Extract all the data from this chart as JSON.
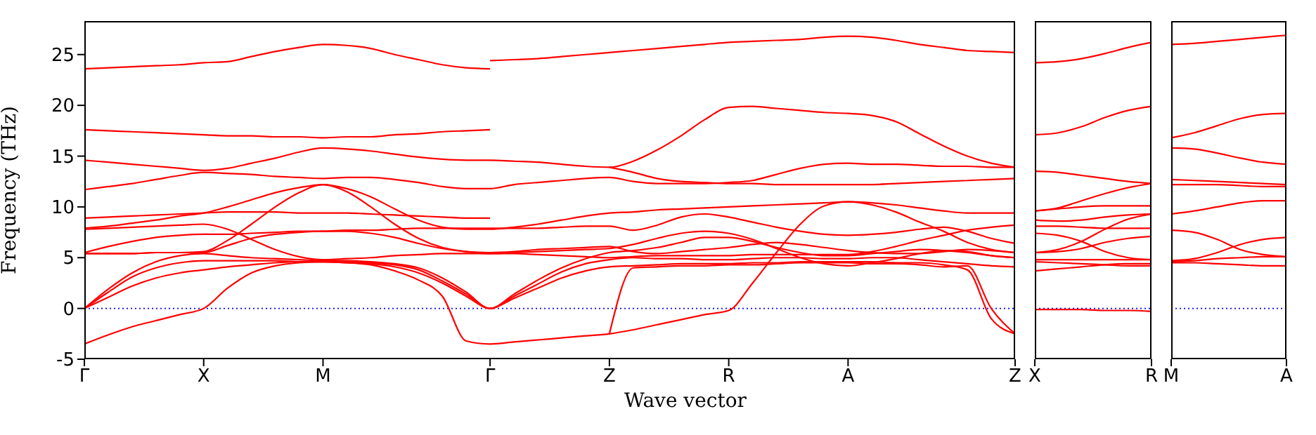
{
  "chart_data": [
    {
      "type": "line",
      "xlabel": "Wave vector",
      "ylabel": "Frequency (THz)",
      "categories": [
        "Γ",
        null,
        null,
        null,
        null,
        "X",
        null,
        null,
        null,
        null,
        "M",
        null,
        null,
        null,
        null,
        null,
        null,
        "Γ",
        null,
        null,
        null,
        null,
        "Z",
        null,
        null,
        null,
        null,
        "R",
        null,
        null,
        null,
        null,
        "A",
        null,
        null,
        null,
        null,
        null,
        null,
        "Z"
      ],
      "ylim": [
        -5,
        28.3
      ],
      "yticks": [
        -5,
        0,
        5,
        10,
        15,
        20,
        25
      ],
      "ref_lines": [
        {
          "axis": "y",
          "value": 0,
          "color": "#0000ff",
          "line_style": "dotted"
        }
      ],
      "series": [
        {
          "color": "#ff0000",
          "values": [
            23.6,
            23.7,
            23.8,
            23.9,
            24.0,
            24.2,
            24.3,
            24.8,
            25.3,
            25.7,
            26.0,
            25.9,
            25.6,
            25.0,
            24.5,
            24.0,
            23.7,
            23.6,
            null,
            null,
            null,
            null,
            null,
            null,
            null,
            null,
            null,
            null,
            null,
            null,
            null,
            null,
            null,
            null,
            null,
            null,
            null,
            null,
            null,
            null
          ]
        },
        {
          "color": "#ff0000",
          "values": [
            null,
            null,
            null,
            null,
            null,
            null,
            null,
            null,
            null,
            null,
            null,
            null,
            null,
            null,
            null,
            null,
            null,
            24.4,
            24.5,
            24.6,
            24.8,
            25.0,
            25.2,
            25.4,
            25.6,
            25.8,
            26.0,
            26.2,
            26.3,
            26.4,
            26.5,
            26.7,
            26.8,
            26.7,
            26.4,
            26.0,
            25.7,
            25.4,
            25.3,
            25.2
          ]
        },
        {
          "color": "#ff0000",
          "values": [
            17.6,
            17.5,
            17.4,
            17.3,
            17.2,
            17.1,
            17.0,
            17.0,
            16.9,
            16.9,
            16.8,
            16.9,
            16.9,
            17.1,
            17.2,
            17.4,
            17.5,
            17.6,
            null,
            null,
            null,
            null,
            null,
            null,
            null,
            null,
            null,
            null,
            null,
            null,
            null,
            null,
            null,
            null,
            null,
            null,
            null,
            null,
            null,
            null
          ]
        },
        {
          "color": "#ff0000",
          "values": [
            14.6,
            14.4,
            14.2,
            14.0,
            13.8,
            13.6,
            13.8,
            14.3,
            14.8,
            15.4,
            15.8,
            15.7,
            15.5,
            15.2,
            14.9,
            14.7,
            14.6,
            14.6,
            14.5,
            14.4,
            14.2,
            14.0,
            13.9,
            14.5,
            15.6,
            17.0,
            18.6,
            19.8,
            19.9,
            19.7,
            19.5,
            19.3,
            19.2,
            19.0,
            18.4,
            17.2,
            16.0,
            15.0,
            14.3,
            13.9
          ]
        },
        {
          "color": "#ff0000",
          "values": [
            11.7,
            12.0,
            12.3,
            12.7,
            13.1,
            13.4,
            13.3,
            13.2,
            13.0,
            12.9,
            12.8,
            12.9,
            12.9,
            12.7,
            12.4,
            12.0,
            11.8,
            11.8,
            12.2,
            12.4,
            12.6,
            12.8,
            12.9,
            12.5,
            12.3,
            12.3,
            12.3,
            12.4,
            12.6,
            13.2,
            13.8,
            14.2,
            14.3,
            14.2,
            14.2,
            14.1,
            14.0,
            14.0,
            13.9,
            13.9
          ]
        },
        {
          "color": "#ff0000",
          "values": [
            null,
            null,
            null,
            null,
            null,
            null,
            null,
            null,
            null,
            null,
            null,
            null,
            null,
            null,
            null,
            null,
            null,
            null,
            null,
            null,
            null,
            null,
            13.9,
            13.4,
            12.8,
            12.5,
            12.4,
            12.3,
            12.3,
            12.2,
            12.2,
            12.2,
            12.2,
            12.2,
            12.3,
            12.4,
            12.5,
            12.6,
            12.7,
            12.8
          ]
        },
        {
          "color": "#ff0000",
          "values": [
            8.9,
            9.0,
            9.1,
            9.2,
            9.3,
            9.4,
            9.5,
            9.5,
            9.5,
            9.4,
            9.4,
            9.4,
            9.3,
            9.2,
            9.1,
            9.0,
            8.9,
            8.9,
            null,
            null,
            null,
            null,
            null,
            null,
            null,
            null,
            null,
            null,
            null,
            null,
            null,
            null,
            null,
            null,
            null,
            null,
            null,
            null,
            null,
            null
          ]
        },
        {
          "color": "#ff0000",
          "values": [
            7.9,
            8.1,
            8.4,
            8.7,
            9.1,
            9.4,
            10.0,
            10.7,
            11.4,
            11.9,
            12.2,
            11.8,
            11.0,
            9.8,
            8.7,
            8.0,
            7.8,
            7.8,
            8.0,
            8.3,
            8.7,
            9.1,
            9.4,
            9.5,
            9.7,
            9.8,
            9.9,
            10.0,
            10.1,
            10.2,
            10.3,
            10.4,
            10.5,
            10.4,
            10.2,
            9.9,
            9.6,
            9.4,
            9.4,
            9.4
          ]
        },
        {
          "color": "#ff0000",
          "values": [
            7.8,
            7.9,
            8.0,
            8.1,
            8.2,
            8.3,
            7.8,
            6.8,
            5.8,
            5.1,
            4.8,
            4.9,
            5.0,
            5.2,
            5.3,
            5.4,
            5.4,
            5.4,
            5.4,
            5.3,
            5.2,
            5.1,
            5.0,
            5.1,
            5.2,
            5.2,
            5.2,
            5.2,
            5.3,
            5.3,
            5.3,
            5.3,
            5.3,
            5.6,
            6.1,
            6.7,
            7.2,
            7.7,
            8.0,
            8.2
          ]
        },
        {
          "color": "#ff0000",
          "values": [
            5.5,
            6.1,
            6.6,
            7.0,
            7.2,
            7.3,
            7.3,
            7.4,
            7.5,
            7.6,
            7.6,
            7.7,
            7.7,
            7.8,
            7.9,
            7.9,
            7.9,
            7.9,
            7.9,
            7.9,
            8.0,
            8.1,
            8.1,
            7.7,
            8.2,
            9.0,
            9.3,
            9.0,
            8.5,
            8.0,
            7.6,
            7.3,
            7.2,
            7.3,
            7.5,
            7.8,
            8.0,
            7.6,
            6.9,
            6.4
          ]
        },
        {
          "color": "#ff0000",
          "values": [
            5.4,
            5.4,
            5.4,
            5.5,
            5.5,
            5.6,
            6.7,
            8.3,
            10.0,
            11.4,
            12.2,
            11.5,
            10.0,
            8.3,
            6.9,
            6.0,
            5.6,
            5.4,
            5.5,
            5.6,
            5.7,
            5.8,
            5.9,
            6.3,
            6.9,
            7.4,
            7.6,
            7.4,
            6.8,
            5.9,
            5.0,
            4.4,
            4.2,
            4.5,
            4.9,
            5.4,
            5.7,
            5.6,
            5.2,
            5.0
          ]
        },
        {
          "color": "#ff0000",
          "values": [
            5.4,
            5.4,
            5.4,
            5.5,
            5.5,
            5.5,
            6.2,
            6.9,
            7.3,
            7.5,
            7.6,
            7.6,
            7.4,
            7.0,
            6.4,
            5.9,
            5.6,
            5.5,
            5.6,
            5.8,
            5.9,
            6.0,
            6.1,
            5.6,
            5.4,
            5.6,
            5.8,
            6.0,
            6.3,
            6.5,
            6.3,
            6.0,
            5.7,
            5.5,
            5.4,
            5.4,
            5.6,
            5.8,
            5.7,
            5.5
          ]
        },
        {
          "color": "#ff0000",
          "values": [
            0,
            1.9,
            3.5,
            4.6,
            5.2,
            5.4,
            5.2,
            5.0,
            4.9,
            4.8,
            4.7,
            4.7,
            4.6,
            4.4,
            4.0,
            3.0,
            1.6,
            0,
            1.4,
            2.8,
            4.0,
            4.9,
            5.5,
            5.7,
            6.0,
            6.5,
            7.0,
            7.0,
            6.6,
            6.0,
            5.5,
            5.2,
            5.2,
            5.4,
            5.6,
            5.8,
            5.7,
            5.5,
            5.2,
            5.0
          ]
        },
        {
          "color": "#ff0000",
          "values": [
            0,
            1.6,
            3.1,
            4.0,
            4.5,
            4.7,
            4.7,
            4.7,
            4.7,
            4.6,
            4.6,
            4.6,
            4.5,
            4.3,
            3.8,
            2.7,
            1.4,
            0,
            1.2,
            2.4,
            3.6,
            4.4,
            4.8,
            5.0,
            4.9,
            4.9,
            4.8,
            4.8,
            4.9,
            5.0,
            5.0,
            4.9,
            4.9,
            5.0,
            5.0,
            4.8,
            4.6,
            4.4,
            4.2,
            4.1
          ]
        },
        {
          "color": "#ff0000",
          "values": [
            0,
            1.1,
            2.2,
            3.0,
            3.5,
            3.8,
            4.1,
            4.3,
            4.5,
            4.6,
            4.6,
            4.5,
            4.4,
            4.1,
            3.5,
            2.5,
            1.2,
            0,
            1.0,
            2.0,
            3.0,
            3.7,
            4.1,
            4.2,
            4.3,
            4.4,
            4.4,
            4.4,
            4.5,
            4.5,
            4.6,
            4.6,
            4.6,
            4.6,
            4.5,
            4.5,
            4.3,
            3.8,
            -1.0,
            -2.5
          ]
        },
        {
          "color": "#ff0000",
          "values": [
            -3.5,
            -2.6,
            -1.8,
            -1.2,
            -0.6,
            0,
            2.0,
            3.5,
            4.2,
            4.5,
            4.6,
            4.5,
            4.3,
            3.7,
            2.8,
            1.2,
            -3.2,
            -3.5,
            -3.3,
            -3.1,
            -2.9,
            -2.7,
            -2.5,
            -2.1,
            -1.6,
            -1.1,
            -0.6,
            -0.2,
            2.5,
            5.5,
            8.3,
            10.1,
            10.5,
            10.2,
            9.5,
            8.5,
            7.6,
            6.5,
            5.8,
            5.5
          ]
        },
        {
          "color": "#ff0000",
          "values": [
            null,
            null,
            null,
            null,
            null,
            null,
            null,
            null,
            null,
            null,
            null,
            null,
            null,
            null,
            null,
            null,
            null,
            null,
            null,
            null,
            null,
            null,
            -2.5,
            4.0,
            4.1,
            4.2,
            4.2,
            4.3,
            4.3,
            4.4,
            4.5,
            4.5,
            4.5,
            4.4,
            4.4,
            4.3,
            4.1,
            4.2,
            0.0,
            -2.5
          ]
        }
      ]
    },
    {
      "type": "line",
      "categories": [
        "X",
        null,
        null,
        null,
        null,
        "R"
      ],
      "ylim": [
        -5,
        28.3
      ],
      "yticks": [
        -5,
        0,
        5,
        10,
        15,
        20,
        25
      ],
      "tick_labels": "x",
      "ref_lines": [
        {
          "axis": "y",
          "value": 0,
          "color": "#0000ff",
          "line_style": "dotted"
        }
      ],
      "series": [
        {
          "color": "#ff0000",
          "values": [
            24.2,
            24.3,
            24.6,
            25.1,
            25.7,
            26.2
          ]
        },
        {
          "color": "#ff0000",
          "values": [
            17.1,
            17.3,
            17.9,
            18.8,
            19.5,
            19.9
          ]
        },
        {
          "color": "#ff0000",
          "values": [
            13.5,
            13.4,
            13.1,
            12.8,
            12.5,
            12.3
          ]
        },
        {
          "color": "#ff0000",
          "values": [
            9.6,
            9.9,
            10.6,
            11.3,
            11.9,
            12.3
          ]
        },
        {
          "color": "#ff0000",
          "values": [
            9.6,
            9.8,
            10.0,
            10.1,
            10.1,
            10.1
          ]
        },
        {
          "color": "#ff0000",
          "values": [
            8.7,
            8.6,
            8.7,
            9.0,
            9.2,
            9.3
          ]
        },
        {
          "color": "#ff0000",
          "values": [
            8.1,
            8.1,
            8.0,
            7.9,
            7.9,
            7.9
          ]
        },
        {
          "color": "#ff0000",
          "values": [
            7.4,
            7.2,
            6.6,
            5.6,
            5.0,
            4.8
          ]
        },
        {
          "color": "#ff0000",
          "values": [
            5.5,
            5.8,
            6.6,
            7.8,
            8.8,
            9.3
          ]
        },
        {
          "color": "#ff0000",
          "values": [
            5.5,
            5.6,
            5.9,
            6.5,
            6.9,
            7.1
          ]
        },
        {
          "color": "#ff0000",
          "values": [
            4.8,
            4.8,
            4.8,
            4.8,
            4.8,
            4.8
          ]
        },
        {
          "color": "#ff0000",
          "values": [
            4.6,
            4.5,
            4.4,
            4.3,
            4.2,
            4.2
          ]
        },
        {
          "color": "#ff0000",
          "values": [
            3.7,
            3.9,
            4.1,
            4.3,
            4.4,
            4.4
          ]
        },
        {
          "color": "#ff0000",
          "values": [
            -0.1,
            -0.1,
            -0.1,
            -0.2,
            -0.2,
            -0.3
          ]
        }
      ]
    },
    {
      "type": "line",
      "categories": [
        "M",
        null,
        null,
        null,
        null,
        "A"
      ],
      "ylim": [
        -5,
        28.3
      ],
      "yticks": [
        -5,
        0,
        5,
        10,
        15,
        20,
        25
      ],
      "tick_labels": "x",
      "ref_lines": [
        {
          "axis": "y",
          "value": 0,
          "color": "#0000ff",
          "line_style": "dotted"
        }
      ],
      "series": [
        {
          "color": "#ff0000",
          "values": [
            26.0,
            26.1,
            26.3,
            26.5,
            26.7,
            26.9
          ]
        },
        {
          "color": "#ff0000",
          "values": [
            16.8,
            17.3,
            18.0,
            18.7,
            19.1,
            19.2
          ]
        },
        {
          "color": "#ff0000",
          "values": [
            15.8,
            15.7,
            15.3,
            14.8,
            14.4,
            14.2
          ]
        },
        {
          "color": "#ff0000",
          "values": [
            12.7,
            12.6,
            12.5,
            12.4,
            12.3,
            12.2
          ]
        },
        {
          "color": "#ff0000",
          "values": [
            12.2,
            12.2,
            12.2,
            12.1,
            12.0,
            12.0
          ]
        },
        {
          "color": "#ff0000",
          "values": [
            9.3,
            9.6,
            10.0,
            10.4,
            10.6,
            10.6
          ]
        },
        {
          "color": "#ff0000",
          "values": [
            7.7,
            7.5,
            6.8,
            5.8,
            5.3,
            5.1
          ]
        },
        {
          "color": "#ff0000",
          "values": [
            4.7,
            4.9,
            5.5,
            6.3,
            6.8,
            7.0
          ]
        },
        {
          "color": "#ff0000",
          "values": [
            4.6,
            4.7,
            4.9,
            5.0,
            5.1,
            5.1
          ]
        },
        {
          "color": "#ff0000",
          "values": [
            4.5,
            4.5,
            4.4,
            4.3,
            4.2,
            4.2
          ]
        }
      ]
    }
  ]
}
